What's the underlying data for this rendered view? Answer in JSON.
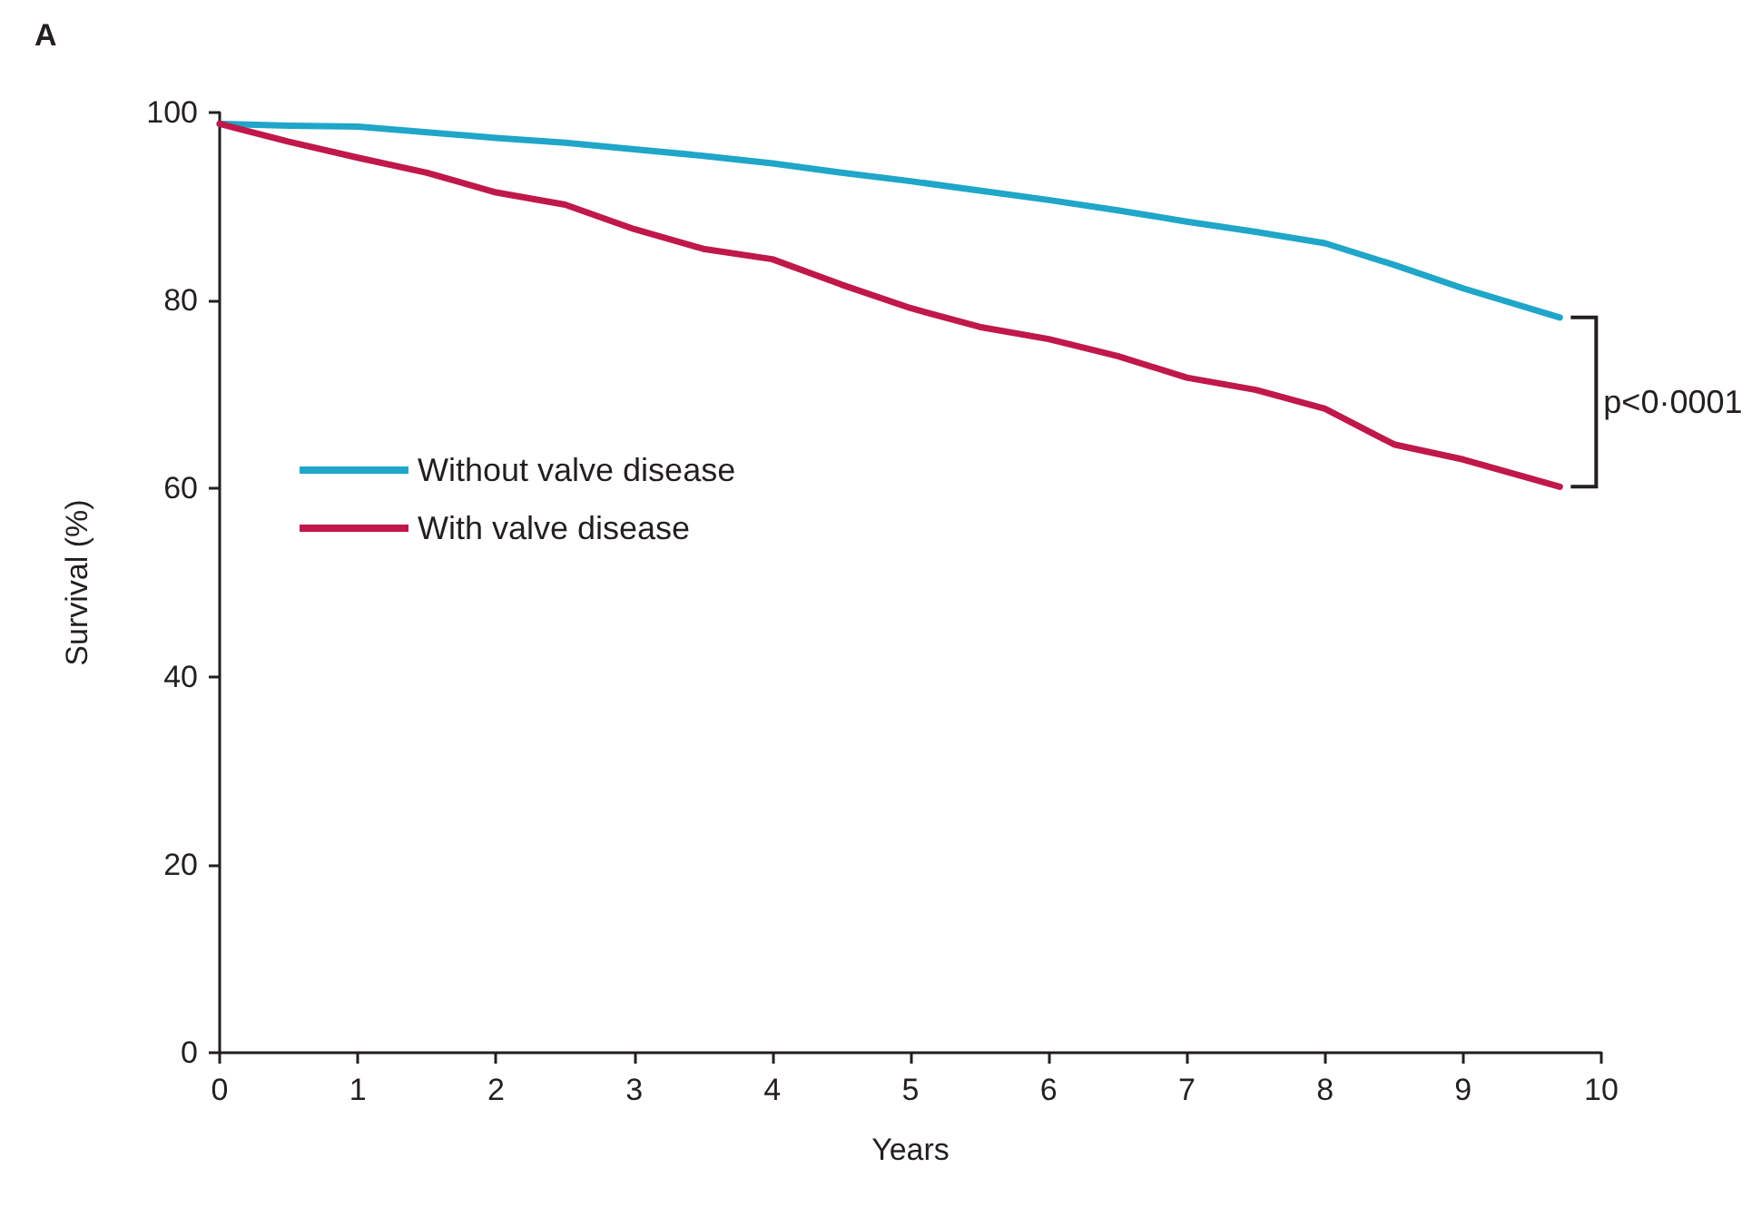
{
  "chart_data": {
    "type": "line",
    "title": "A",
    "xlabel": "Years",
    "ylabel": "Survival (%)",
    "xlim": [
      0,
      10
    ],
    "xticks": [
      0,
      1,
      2,
      3,
      4,
      5,
      6,
      7,
      8,
      9,
      10
    ],
    "ylim": [
      0,
      100
    ],
    "yticks": [
      0,
      20,
      40,
      60,
      80,
      100
    ],
    "grid": false,
    "legend": "left",
    "marker": "none",
    "line_style": "solid",
    "annotations": [
      "p<0·0001"
    ],
    "series": [
      {
        "name": "Without valve disease",
        "color": "#1fa6c9",
        "x": [
          0,
          0.5,
          1,
          1.5,
          2,
          2.5,
          3,
          3.5,
          4,
          4.5,
          5,
          5.5,
          6,
          6.5,
          7,
          7.5,
          8,
          8.5,
          9,
          9.7
        ],
        "values": [
          98.8,
          98.6,
          98.5,
          97.9,
          97.3,
          96.8,
          96.1,
          95.4,
          94.6,
          93.6,
          92.7,
          91.7,
          90.7,
          89.6,
          88.4,
          87.3,
          86.1,
          83.8,
          81.3,
          78.2
        ]
      },
      {
        "name": "With valve disease",
        "color": "#c0184a",
        "x": [
          0,
          0.5,
          1,
          1.5,
          2,
          2.5,
          3,
          3.5,
          4,
          4.5,
          5,
          5.5,
          6,
          6.5,
          7,
          7.5,
          8,
          8.5,
          9,
          9.7
        ],
        "values": [
          98.8,
          96.9,
          95.2,
          93.6,
          91.5,
          90.2,
          87.6,
          85.5,
          84.4,
          81.7,
          79.2,
          77.2,
          75.9,
          74.1,
          71.8,
          70.5,
          68.5,
          64.7,
          63.1,
          60.2
        ]
      }
    ]
  }
}
